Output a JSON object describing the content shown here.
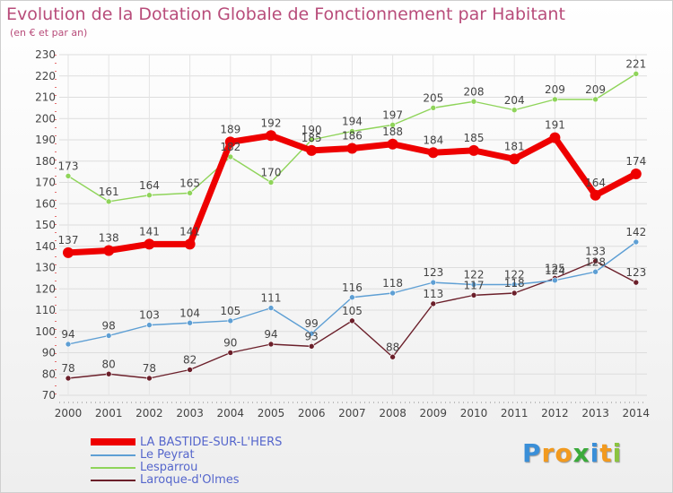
{
  "chart_data": {
    "type": "line",
    "title": "Evolution de la Dotation Globale de Fonctionnement par Habitant",
    "subtitle": "(en € et par an)",
    "x": [
      "2000",
      "2001",
      "2002",
      "2003",
      "2004",
      "2005",
      "2006",
      "2007",
      "2008",
      "2009",
      "2010",
      "2011",
      "2012",
      "2013",
      "2014"
    ],
    "ylim": [
      70,
      230
    ],
    "yticks": [
      70,
      80,
      90,
      100,
      110,
      120,
      130,
      140,
      150,
      160,
      170,
      180,
      190,
      200,
      210,
      220,
      230
    ],
    "grid": true,
    "legend_position": "bottom-left",
    "series": [
      {
        "name": "Laroque-d'Olmes",
        "color": "#6b1f2a",
        "values": [
          78,
          80,
          78,
          82,
          90,
          94,
          93,
          105,
          88,
          113,
          117,
          118,
          125,
          133,
          123
        ]
      },
      {
        "name": "Le Peyrat",
        "color": "#5e9fd4",
        "values": [
          94,
          98,
          103,
          104,
          105,
          111,
          99,
          116,
          118,
          123,
          122,
          122,
          124,
          128,
          142
        ]
      },
      {
        "name": "Lesparrou",
        "color": "#8fd45a",
        "values": [
          173,
          161,
          164,
          165,
          182,
          170,
          190,
          194,
          197,
          205,
          208,
          204,
          209,
          209,
          221
        ]
      },
      {
        "name": "LA BASTIDE-SUR-L'HERS",
        "color": "#ee0000",
        "values": [
          137,
          138,
          141,
          141,
          189,
          192,
          185,
          186,
          188,
          184,
          185,
          181,
          191,
          164,
          174
        ]
      }
    ],
    "data_labels": {
      "Laroque-d'Olmes": [
        "78",
        "80",
        "78",
        "82",
        "90",
        "94",
        "93",
        "105",
        "88",
        "113",
        "117",
        "118",
        "125",
        "133",
        "123"
      ],
      "Le Peyrat": [
        "94",
        "98",
        "103",
        "104",
        "105",
        "111",
        "99",
        "116",
        "118",
        "123",
        "122",
        "122",
        "124",
        "128",
        "142"
      ],
      "Lesparrou": [
        "173",
        "161",
        "164",
        "165",
        "182",
        "170",
        "190",
        "194",
        "197",
        "205",
        "208",
        "204",
        "209",
        "209",
        "221"
      ],
      "LA BASTIDE-SUR-L'HERS": [
        "137",
        "138",
        "141",
        "141",
        "189",
        "192",
        "185",
        "186",
        "188",
        "184",
        "185",
        "181",
        "191",
        "164",
        "174"
      ]
    }
  },
  "legend": [
    {
      "name": "LA BASTIDE-SUR-L'HERS",
      "color": "#ee0000",
      "thickness": "thick"
    },
    {
      "name": "Le Peyrat",
      "color": "#5e9fd4",
      "thickness": "thin"
    },
    {
      "name": "Lesparrou",
      "color": "#8fd45a",
      "thickness": "thin"
    },
    {
      "name": "Laroque-d'Olmes",
      "color": "#6b1f2a",
      "thickness": "thin"
    }
  ],
  "brand": {
    "letters": [
      "P",
      "r",
      "o",
      "x",
      "i",
      "t",
      "i"
    ],
    "colors": [
      "#3a8fd8",
      "#f29a1e",
      "#f29a1e",
      "#3aaa3a",
      "#3a8fd8",
      "#f29a1e",
      "#8bc43f"
    ]
  }
}
